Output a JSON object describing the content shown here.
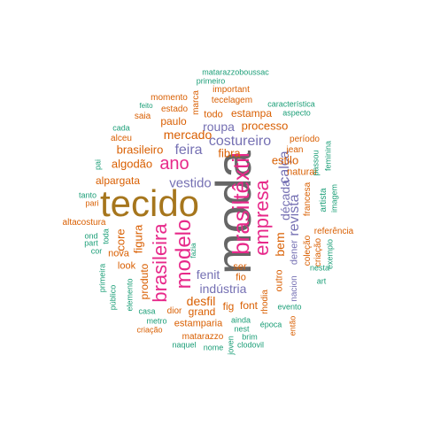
{
  "palette": {
    "green": "#1b9e77",
    "orange": "#d95f02",
    "purple": "#7570b3",
    "magenta": "#e7298a",
    "olive": "#a6761d",
    "gray": "#666666"
  },
  "words": [
    {
      "text": "moda",
      "color": "gray"
    },
    {
      "text": "tecido",
      "color": "olive"
    },
    {
      "text": "brasiltêxtil",
      "color": "magenta"
    },
    {
      "text": "empresa",
      "color": "magenta"
    },
    {
      "text": "modelo",
      "color": "magenta"
    },
    {
      "text": "brasileira",
      "color": "magenta"
    },
    {
      "text": "ano",
      "color": "magenta"
    },
    {
      "text": "calça",
      "color": "purple"
    },
    {
      "text": "costureiro",
      "color": "purple"
    },
    {
      "text": "feira",
      "color": "purple"
    },
    {
      "text": "vestido",
      "color": "purple"
    },
    {
      "text": "mercado",
      "color": "orange"
    },
    {
      "text": "brasileiro",
      "color": "orange"
    },
    {
      "text": "algodão",
      "color": "orange"
    },
    {
      "text": "alpargata",
      "color": "orange"
    },
    {
      "text": "roupa",
      "color": "purple"
    },
    {
      "text": "processo",
      "color": "orange"
    },
    {
      "text": "estampa",
      "color": "orange"
    },
    {
      "text": "todo",
      "color": "orange"
    },
    {
      "text": "paulo",
      "color": "orange"
    },
    {
      "text": "estado",
      "color": "orange"
    },
    {
      "text": "momento",
      "color": "orange"
    },
    {
      "text": "saia",
      "color": "orange"
    },
    {
      "text": "feito",
      "color": "green"
    },
    {
      "text": "cada",
      "color": "green"
    },
    {
      "text": "alceu",
      "color": "orange"
    },
    {
      "text": "pai",
      "color": "green"
    },
    {
      "text": "tanto",
      "color": "green"
    },
    {
      "text": "pari",
      "color": "orange"
    },
    {
      "text": "altacostura",
      "color": "orange"
    },
    {
      "text": "ond",
      "color": "green"
    },
    {
      "text": "part",
      "color": "green"
    },
    {
      "text": "cor",
      "color": "green"
    },
    {
      "text": "toda",
      "color": "green"
    },
    {
      "text": "core",
      "color": "orange"
    },
    {
      "text": "figura",
      "color": "orange"
    },
    {
      "text": "nova",
      "color": "orange"
    },
    {
      "text": "look",
      "color": "orange"
    },
    {
      "text": "produto",
      "color": "orange"
    },
    {
      "text": "primeira",
      "color": "green"
    },
    {
      "text": "público",
      "color": "green"
    },
    {
      "text": "elemento",
      "color": "green"
    },
    {
      "text": "casa",
      "color": "green"
    },
    {
      "text": "metro",
      "color": "green"
    },
    {
      "text": "criação",
      "color": "orange"
    },
    {
      "text": "dior",
      "color": "orange"
    },
    {
      "text": "estamparia",
      "color": "orange"
    },
    {
      "text": "grand",
      "color": "orange"
    },
    {
      "text": "desfil",
      "color": "orange"
    },
    {
      "text": "fig",
      "color": "orange"
    },
    {
      "text": "font",
      "color": "orange"
    },
    {
      "text": "indústria",
      "color": "purple"
    },
    {
      "text": "fenit",
      "color": "purple"
    },
    {
      "text": "fio",
      "color": "orange"
    },
    {
      "text": "ser",
      "color": "orange"
    },
    {
      "text": "fazia",
      "color": "green"
    },
    {
      "text": "matarazzo",
      "color": "orange"
    },
    {
      "text": "naquel",
      "color": "green"
    },
    {
      "text": "nome",
      "color": "green"
    },
    {
      "text": "joven",
      "color": "green"
    },
    {
      "text": "ainda",
      "color": "green"
    },
    {
      "text": "nest",
      "color": "green"
    },
    {
      "text": "brim",
      "color": "green"
    },
    {
      "text": "clodovil",
      "color": "green"
    },
    {
      "text": "época",
      "color": "green"
    },
    {
      "text": "evento",
      "color": "green"
    },
    {
      "text": "então",
      "color": "orange"
    },
    {
      "text": "rhodia",
      "color": "orange"
    },
    {
      "text": "outro",
      "color": "orange"
    },
    {
      "text": "nacion",
      "color": "purple"
    },
    {
      "text": "bem",
      "color": "orange"
    },
    {
      "text": "dener",
      "color": "purple"
    },
    {
      "text": "década",
      "color": "purple"
    },
    {
      "text": "revista",
      "color": "purple"
    },
    {
      "text": "estilo",
      "color": "orange"
    },
    {
      "text": "jean",
      "color": "orange"
    },
    {
      "text": "naturai",
      "color": "orange"
    },
    {
      "text": "período",
      "color": "orange"
    },
    {
      "text": "francesa",
      "color": "orange"
    },
    {
      "text": "coleção",
      "color": "orange"
    },
    {
      "text": "criação",
      "color": "orange"
    },
    {
      "text": "referência",
      "color": "orange"
    },
    {
      "text": "artista",
      "color": "green"
    },
    {
      "text": "passou",
      "color": "green"
    },
    {
      "text": "feminina",
      "color": "green"
    },
    {
      "text": "imagem",
      "color": "green"
    },
    {
      "text": "exemplo",
      "color": "green"
    },
    {
      "text": "art",
      "color": "green"
    },
    {
      "text": "nesta",
      "color": "green"
    },
    {
      "text": "fibra",
      "color": "orange"
    },
    {
      "text": "tecelagem",
      "color": "orange"
    },
    {
      "text": "important",
      "color": "orange"
    },
    {
      "text": "primeiro",
      "color": "green"
    },
    {
      "text": "matarazzoboussac",
      "color": "green"
    },
    {
      "text": "marca",
      "color": "orange"
    },
    {
      "text": "característica",
      "color": "green"
    },
    {
      "text": "aspecto",
      "color": "green"
    }
  ]
}
